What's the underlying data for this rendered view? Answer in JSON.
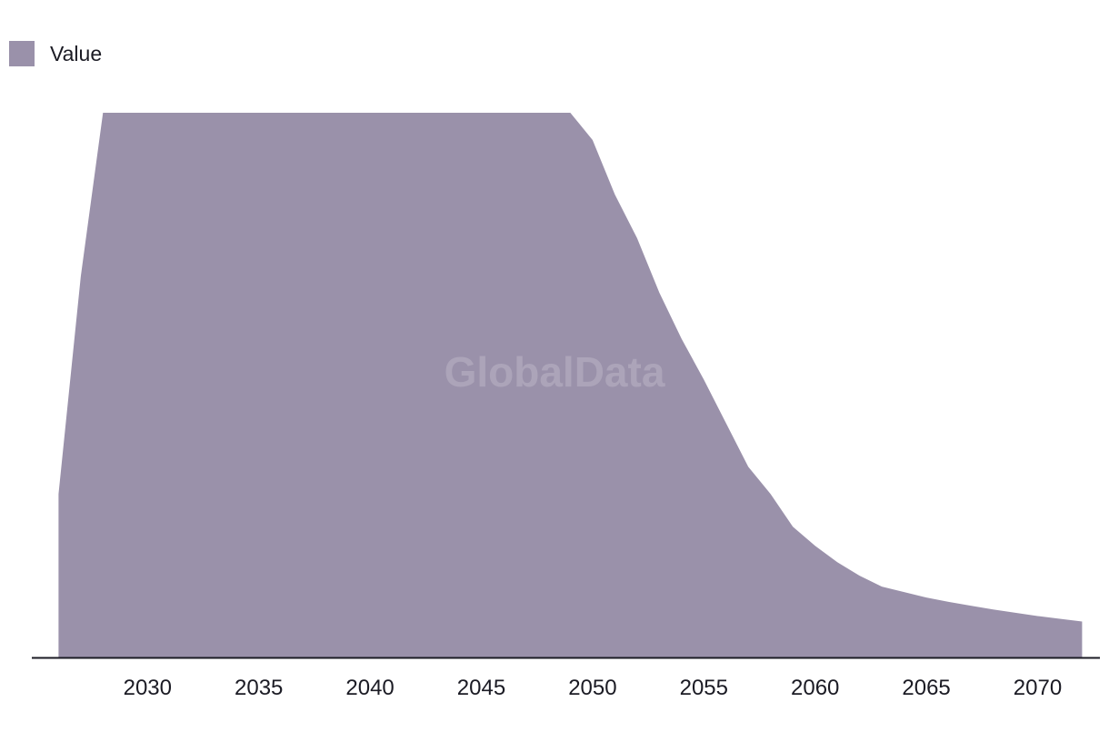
{
  "watermark": "GlobalData",
  "colors": {
    "area": "#9a91aa",
    "axis": "#1b1b24",
    "text": "#1b1b24"
  },
  "chart_data": {
    "type": "area",
    "series": [
      {
        "name": "Value",
        "color": "#9a91aa",
        "x": [
          2026,
          2027,
          2028,
          2029,
          2030,
          2035,
          2040,
          2045,
          2049,
          2050,
          2051,
          2052,
          2053,
          2054,
          2055,
          2056,
          2057,
          2058,
          2059,
          2060,
          2061,
          2062,
          2063,
          2064,
          2065,
          2066,
          2067,
          2068,
          2069,
          2070,
          2071,
          2072
        ],
        "values": [
          30,
          70,
          100,
          100,
          100,
          100,
          100,
          100,
          100,
          95,
          85,
          77,
          67,
          58.5,
          51,
          43,
          35,
          30,
          24,
          20.5,
          17.5,
          15,
          13,
          12,
          11,
          10.2,
          9.5,
          8.8,
          8.2,
          7.6,
          7.1,
          6.6
        ]
      }
    ],
    "x_ticks": [
      2030,
      2035,
      2040,
      2045,
      2050,
      2055,
      2060,
      2065,
      2070
    ],
    "xlim": [
      2024.8,
      2072.8
    ],
    "ylim": [
      0,
      100
    ],
    "xlabel": "",
    "ylabel": "",
    "grid": false,
    "legend": "top-left"
  }
}
